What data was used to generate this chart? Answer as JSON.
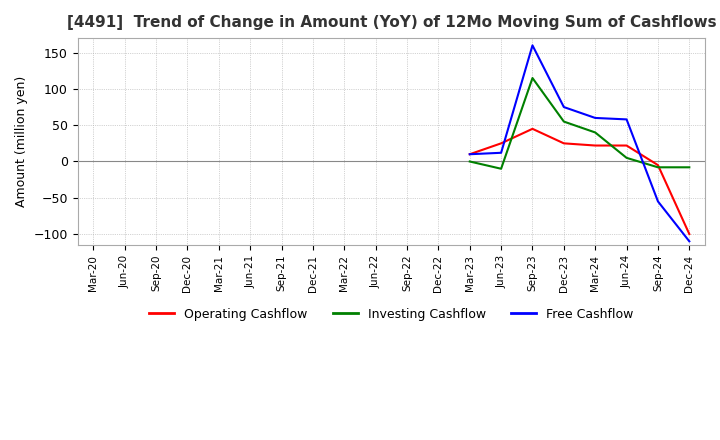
{
  "title": "[4491]  Trend of Change in Amount (YoY) of 12Mo Moving Sum of Cashflows",
  "ylabel": "Amount (million yen)",
  "ylim": [
    -115,
    170
  ],
  "yticks": [
    -100,
    -50,
    0,
    50,
    100,
    150
  ],
  "background_color": "#ffffff",
  "plot_background_color": "#ffffff",
  "grid_color": "#aaaaaa",
  "dates": [
    "Mar-20",
    "Jun-20",
    "Sep-20",
    "Dec-20",
    "Mar-21",
    "Jun-21",
    "Sep-21",
    "Dec-21",
    "Mar-22",
    "Jun-22",
    "Sep-22",
    "Dec-22",
    "Mar-23",
    "Jun-23",
    "Sep-23",
    "Dec-23",
    "Mar-24",
    "Jun-24",
    "Sep-24",
    "Dec-24"
  ],
  "operating": [
    null,
    null,
    null,
    null,
    null,
    null,
    null,
    null,
    null,
    null,
    null,
    null,
    10,
    25,
    45,
    25,
    22,
    22,
    -5,
    -100
  ],
  "investing": [
    null,
    null,
    null,
    null,
    null,
    null,
    null,
    null,
    null,
    null,
    null,
    null,
    0,
    -10,
    115,
    55,
    40,
    5,
    -8,
    -8
  ],
  "free": [
    null,
    null,
    null,
    null,
    null,
    null,
    null,
    null,
    null,
    null,
    null,
    null,
    10,
    12,
    160,
    75,
    60,
    58,
    -55,
    -110
  ],
  "operating_color": "#ff0000",
  "investing_color": "#008000",
  "free_color": "#0000ff",
  "legend_labels": [
    "Operating Cashflow",
    "Investing Cashflow",
    "Free Cashflow"
  ]
}
